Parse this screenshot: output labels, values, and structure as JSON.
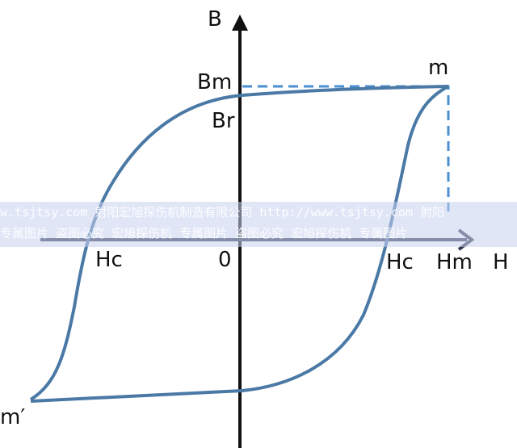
{
  "labels": {
    "b_axis": "B",
    "bm": "Bm",
    "br": "Br",
    "m": "m",
    "hc_left": "Hc",
    "origin": "0",
    "hc_right": "Hc",
    "hm": "Hm",
    "h_axis": "H",
    "m_prime": "m′"
  },
  "watermark": {
    "line1": "w.tsjtsy.com 射阳宏旭探伤机制造有限公司  http://www.tsjtsy.com 射阳",
    "line2": " 专属图片 盗图必究   宏旭探伤机 专属图片 盗图必究   宏旭探伤机 专属图片"
  },
  "colors": {
    "curve": "#4a79a6",
    "dashed": "#4a8fd0",
    "axis": "#111111"
  }
}
